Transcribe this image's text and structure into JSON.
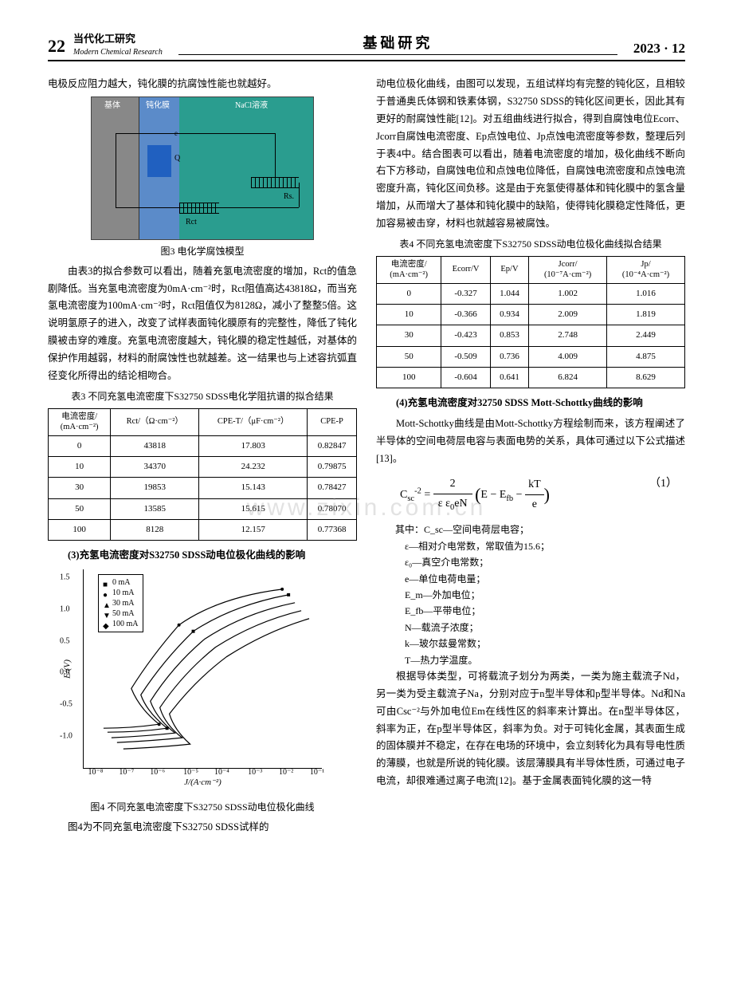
{
  "header": {
    "page_number": "22",
    "journal_cn": "当代化工研究",
    "journal_en": "Modern Chemical Research",
    "section_title": "基础研究",
    "issue": "2023 · 12"
  },
  "watermark": "www.zixin.com.cn",
  "left_col": {
    "intro_text": "电极反应阻力越大，钝化膜的抗腐蚀性能也就越好。",
    "fig3": {
      "substrate_label": "基体",
      "passfilm_label": "钝化膜",
      "solution_label": "NaCl溶液",
      "q_label": "Q",
      "rs_label": "Rs.",
      "rct_label": "Rct",
      "e_label": "e",
      "bg_color_solution": "#2a9d8f",
      "bg_color_substrate": "#888888",
      "bg_color_passfilm": "#5b8bc9",
      "q_color": "#2060c0",
      "caption": "图3  电化学腐蚀模型"
    },
    "para1": "由表3的拟合参数可以看出，随着充氢电流密度的增加，Rct的值急剧降低。当充氢电流密度为0mA·cm⁻²时，Rct阻值高达43818Ω，而当充氢电流密度为100mA·cm⁻²时，Rct阻值仅为8128Ω，减小了整整5倍。这说明氢原子的进入，改变了试样表面钝化膜原有的完整性，降低了钝化膜被击穿的难度。充氢电流密度越大，钝化膜的稳定性越低，对基体的保护作用越弱，材料的耐腐蚀性也就越差。这一结果也与上述容抗弧直径变化所得出的结论相吻合。",
    "table3": {
      "caption": "表3  不同充氢电流密度下S32750 SDSS电化学阻抗谱的拟合结果",
      "columns": [
        "电流密度/\n(mA·cm⁻²)",
        "Rct/（Ω·cm⁻²）",
        "CPE-T/（μF·cm⁻²）",
        "CPE-P"
      ],
      "rows": [
        [
          "0",
          "43818",
          "17.803",
          "0.82847"
        ],
        [
          "10",
          "34370",
          "24.232",
          "0.79875"
        ],
        [
          "30",
          "19853",
          "15.143",
          "0.78427"
        ],
        [
          "50",
          "13585",
          "15.615",
          "0.78070"
        ],
        [
          "100",
          "8128",
          "12.157",
          "0.77368"
        ]
      ]
    },
    "section3_heading": "(3)充氢电流密度对S32750 SDSS动电位极化曲线的影响",
    "fig4": {
      "ylabel": "E/(V)",
      "xlabel": "J/(A·cm⁻²)",
      "yticks": [
        {
          "pos_pct": 4,
          "label": "1.5"
        },
        {
          "pos_pct": 20,
          "label": "1.0"
        },
        {
          "pos_pct": 36,
          "label": "0.5"
        },
        {
          "pos_pct": 52,
          "label": "0.0"
        },
        {
          "pos_pct": 68,
          "label": "-0.5"
        },
        {
          "pos_pct": 84,
          "label": "-1.0"
        }
      ],
      "xticks": [
        {
          "pos_pct": 5,
          "label": "10⁻⁸"
        },
        {
          "pos_pct": 18,
          "label": "10⁻⁷"
        },
        {
          "pos_pct": 31,
          "label": "10⁻⁶"
        },
        {
          "pos_pct": 45,
          "label": "10⁻⁵"
        },
        {
          "pos_pct": 58,
          "label": "10⁻⁴"
        },
        {
          "pos_pct": 72,
          "label": "10⁻³"
        },
        {
          "pos_pct": 85,
          "label": "10⁻²"
        },
        {
          "pos_pct": 98,
          "label": "10⁻¹"
        }
      ],
      "legend_items": [
        {
          "marker": "■",
          "label": "0 mA"
        },
        {
          "marker": "●",
          "label": "10 mA"
        },
        {
          "marker": "▲",
          "label": "30 mA"
        },
        {
          "marker": "▼",
          "label": "50 mA"
        },
        {
          "marker": "◆",
          "label": "100 mA"
        }
      ],
      "series_color": "#000000",
      "caption": "图4  不同充氢电流密度下S32750 SDSS动电位极化曲线"
    },
    "closing_text": "图4为不同充氢电流密度下S32750 SDSS试样的"
  },
  "right_col": {
    "para1": "动电位极化曲线，由图可以发现，五组试样均有完整的钝化区，且相较于普通奥氏体钢和铁素体钢，S32750 SDSS的钝化区间更长，因此其有更好的耐腐蚀性能[12]。对五组曲线进行拟合，得到自腐蚀电位Ecorr、Jcorr自腐蚀电流密度、Ep点蚀电位、Jp点蚀电流密度等参数，整理后列于表4中。结合图表可以看出，随着电流密度的增加，极化曲线不断向右下方移动，自腐蚀电位和点蚀电位降低，自腐蚀电流密度和点蚀电流密度升高，钝化区间负移。这是由于充氢使得基体和钝化膜中的氢含量增加，从而增大了基体和钝化膜中的缺陷，使得钝化膜稳定性降低，更加容易被击穿，材料也就越容易被腐蚀。",
    "table4": {
      "caption": "表4  不同充氢电流密度下S32750 SDSS动电位极化曲线拟合结果",
      "columns": [
        "电流密度/\n(mA·cm⁻²)",
        "Ecorr/V",
        "Ep/V",
        "Jcorr/\n(10⁻⁷A·cm⁻²)",
        "Jp/\n(10⁻⁴A·cm⁻²)"
      ],
      "rows": [
        [
          "0",
          "-0.327",
          "1.044",
          "1.002",
          "1.016"
        ],
        [
          "10",
          "-0.366",
          "0.934",
          "2.009",
          "1.819"
        ],
        [
          "30",
          "-0.423",
          "0.853",
          "2.748",
          "2.449"
        ],
        [
          "50",
          "-0.509",
          "0.736",
          "4.009",
          "4.875"
        ],
        [
          "100",
          "-0.604",
          "0.641",
          "6.824",
          "8.629"
        ]
      ]
    },
    "section4_heading": "(4)充氢电流密度对32750 SDSS Mott-Schottky曲线的影响",
    "para2": "Mott-Schottky曲线是由Mott-Schottky方程绘制而来，该方程阐述了半导体的空间电荷层电容与表面电势的关系，具体可通过以下公式描述[13]。",
    "equation": {
      "text": "C_sc^{-2} = (2 / (ε ε₀ e N)) (E − E_fb − kT/e)",
      "display": "C<sub>sc</sub><sup>-2</sup> = <span style='font-size:19px'>2</span> / (ε&nbsp;ε<sub>0</sub>eN) · (E − E<sub>fb</sub> − kT/e)",
      "number": "（1）"
    },
    "definitions": [
      "其中：C_sc—空间电荷层电容；",
      "ε—相对介电常数，常取值为15.6；",
      "ε₀—真空介电常数；",
      "e—单位电荷电量；",
      "E_m—外加电位；",
      "E_fb—平带电位；",
      "N—载流子浓度；",
      "k—玻尔兹曼常数；",
      "T—热力学温度。"
    ],
    "para3": "根据导体类型，可将载流子划分为两类，一类为施主载流子Nd，另一类为受主载流子Na，分别对应于n型半导体和p型半导体。Nd和Na可由Csc⁻²与外加电位Em在线性区的斜率来计算出。在n型半导体区，斜率为正，在p型半导体区，斜率为负。对于可钝化金属，其表面生成的固体膜并不稳定，在存在电场的环境中，会立刻转化为具有导电性质的薄膜，也就是所说的钝化膜。该层薄膜具有半导体性质，可通过电子电流，却很难通过离子电流[12]。基于金属表面钝化膜的这一特"
  }
}
